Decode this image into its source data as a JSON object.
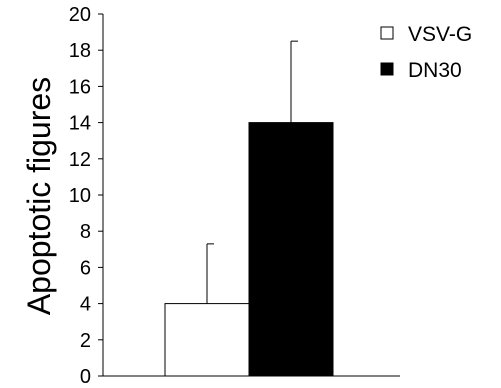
{
  "chart_data": {
    "type": "bar",
    "title": "",
    "xlabel": "",
    "ylabel": "Apoptotic figures",
    "ylim": [
      0,
      20
    ],
    "yticks": [
      0,
      2,
      4,
      6,
      8,
      10,
      12,
      14,
      16,
      18,
      20
    ],
    "grid": false,
    "legend_position": "top-right",
    "series": [
      {
        "name": "VSV-G",
        "value": 4,
        "error": 3.3,
        "fill": "#ffffff",
        "stroke": "#000000"
      },
      {
        "name": "DN30",
        "value": 14,
        "error": 4.5,
        "fill": "#000000",
        "stroke": "#000000"
      }
    ]
  }
}
